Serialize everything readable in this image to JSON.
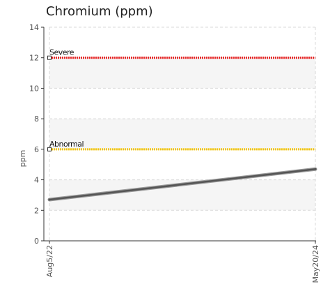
{
  "chart_data": {
    "type": "line",
    "title": "Chromium (ppm)",
    "ylabel": "ppm",
    "xlabel": "",
    "ylim": [
      0,
      14
    ],
    "yticks": [
      0,
      2,
      4,
      6,
      8,
      10,
      12,
      14
    ],
    "categories": [
      "Aug5/22",
      "May20/24"
    ],
    "series": [
      {
        "values": [
          2.7,
          4.7
        ],
        "color": "#555555"
      }
    ],
    "thresholds": [
      {
        "name": "Severe",
        "value": 12,
        "color": "#e82020"
      },
      {
        "name": "Abnormal",
        "value": 6,
        "color": "#f2c400"
      }
    ],
    "grid": true,
    "band_color": "#f5f5f5"
  }
}
